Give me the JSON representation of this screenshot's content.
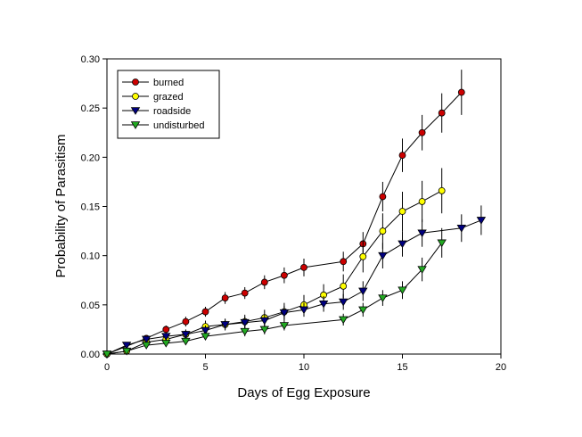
{
  "chart_data": {
    "type": "line",
    "xlabel": "Days of Egg Exposure",
    "ylabel": "Probability of Parasitism",
    "xlim": [
      0,
      20
    ],
    "ylim": [
      0,
      0.3
    ],
    "x_ticks": [
      0,
      5,
      10,
      15,
      20
    ],
    "y_ticks": [
      0.0,
      0.05,
      0.1,
      0.15,
      0.2,
      0.25,
      0.3
    ],
    "x_tick_labels": [
      "0",
      "5",
      "10",
      "15",
      "20"
    ],
    "y_tick_labels": [
      "0.00",
      "0.05",
      "0.10",
      "0.15",
      "0.20",
      "0.25",
      "0.30"
    ],
    "grid": false,
    "legend_position": "top-left",
    "error_bars": true,
    "series": [
      {
        "name": "burned",
        "color": "#cc0000",
        "marker": "circle",
        "x": [
          0,
          2,
          3,
          4,
          5,
          6,
          7,
          8,
          9,
          10,
          12,
          13,
          14,
          15,
          16,
          17,
          18
        ],
        "y": [
          0,
          0.016,
          0.025,
          0.033,
          0.043,
          0.057,
          0.062,
          0.073,
          0.08,
          0.088,
          0.094,
          0.112,
          0.16,
          0.202,
          0.225,
          0.245,
          0.266
        ],
        "err": [
          0,
          0.003,
          0.004,
          0.005,
          0.005,
          0.006,
          0.006,
          0.007,
          0.008,
          0.009,
          0.01,
          0.012,
          0.015,
          0.017,
          0.018,
          0.02,
          0.023
        ]
      },
      {
        "name": "grazed",
        "color": "#ffff00",
        "marker": "circle",
        "x": [
          0,
          1,
          2,
          3,
          4,
          5,
          6,
          7,
          8,
          9,
          10,
          11,
          12,
          13,
          14,
          15,
          16,
          17
        ],
        "y": [
          0,
          0.003,
          0.012,
          0.015,
          0.02,
          0.028,
          0.03,
          0.033,
          0.037,
          0.043,
          0.05,
          0.06,
          0.069,
          0.099,
          0.125,
          0.145,
          0.155,
          0.166
        ],
        "err": [
          0,
          0.002,
          0.003,
          0.004,
          0.005,
          0.006,
          0.006,
          0.007,
          0.008,
          0.009,
          0.01,
          0.011,
          0.012,
          0.016,
          0.018,
          0.02,
          0.021,
          0.023
        ]
      },
      {
        "name": "roadside",
        "color": "#000080",
        "marker": "triangle-down",
        "x": [
          0,
          1,
          2,
          3,
          4,
          5,
          6,
          7,
          8,
          9,
          10,
          11,
          12,
          13,
          14,
          15,
          16,
          18,
          19
        ],
        "y": [
          0,
          0.009,
          0.015,
          0.018,
          0.02,
          0.024,
          0.03,
          0.032,
          0.034,
          0.042,
          0.045,
          0.051,
          0.053,
          0.064,
          0.1,
          0.112,
          0.123,
          0.128,
          0.136
        ],
        "err": [
          0,
          0.002,
          0.003,
          0.004,
          0.004,
          0.005,
          0.005,
          0.006,
          0.006,
          0.007,
          0.007,
          0.008,
          0.008,
          0.01,
          0.013,
          0.013,
          0.014,
          0.014,
          0.015
        ]
      },
      {
        "name": "undisturbed",
        "color": "#22aa22",
        "marker": "triangle-down",
        "x": [
          0,
          1,
          2,
          3,
          4,
          5,
          7,
          8,
          9,
          12,
          13,
          14,
          15,
          16,
          17
        ],
        "y": [
          0,
          0.003,
          0.009,
          0.011,
          0.013,
          0.018,
          0.023,
          0.025,
          0.029,
          0.035,
          0.045,
          0.057,
          0.065,
          0.086,
          0.113
        ],
        "err": [
          0,
          0.002,
          0.002,
          0.003,
          0.003,
          0.004,
          0.005,
          0.005,
          0.005,
          0.006,
          0.007,
          0.008,
          0.009,
          0.012,
          0.015
        ]
      }
    ]
  }
}
